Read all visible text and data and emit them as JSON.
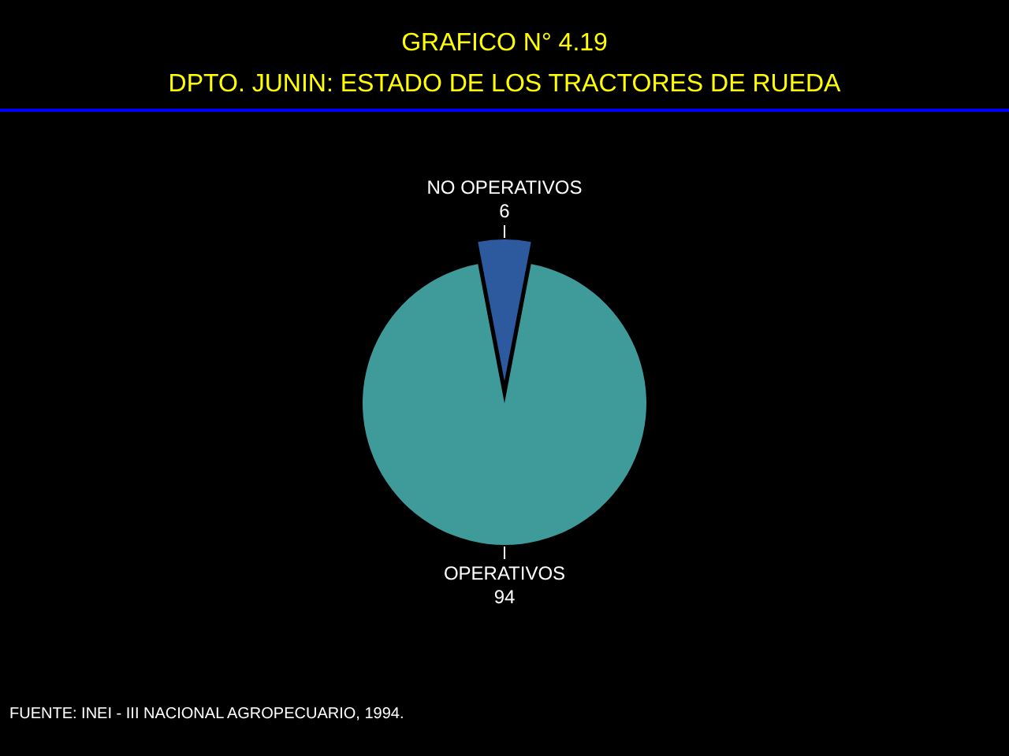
{
  "chart_data": {
    "type": "pie",
    "title": "GRAFICO N° 4.19",
    "subtitle": "DPTO. JUNIN: ESTADO DE LOS TRACTORES DE RUEDA",
    "categories": [
      "NO OPERATIVOS",
      "OPERATIVOS"
    ],
    "values": [
      6,
      94
    ],
    "colors": [
      "#2d5a9e",
      "#3f9a9a"
    ],
    "data_labels": true,
    "annotations": [
      "FUENTE: INEI - III NACIONAL AGROPECUARIO, 1994."
    ]
  }
}
